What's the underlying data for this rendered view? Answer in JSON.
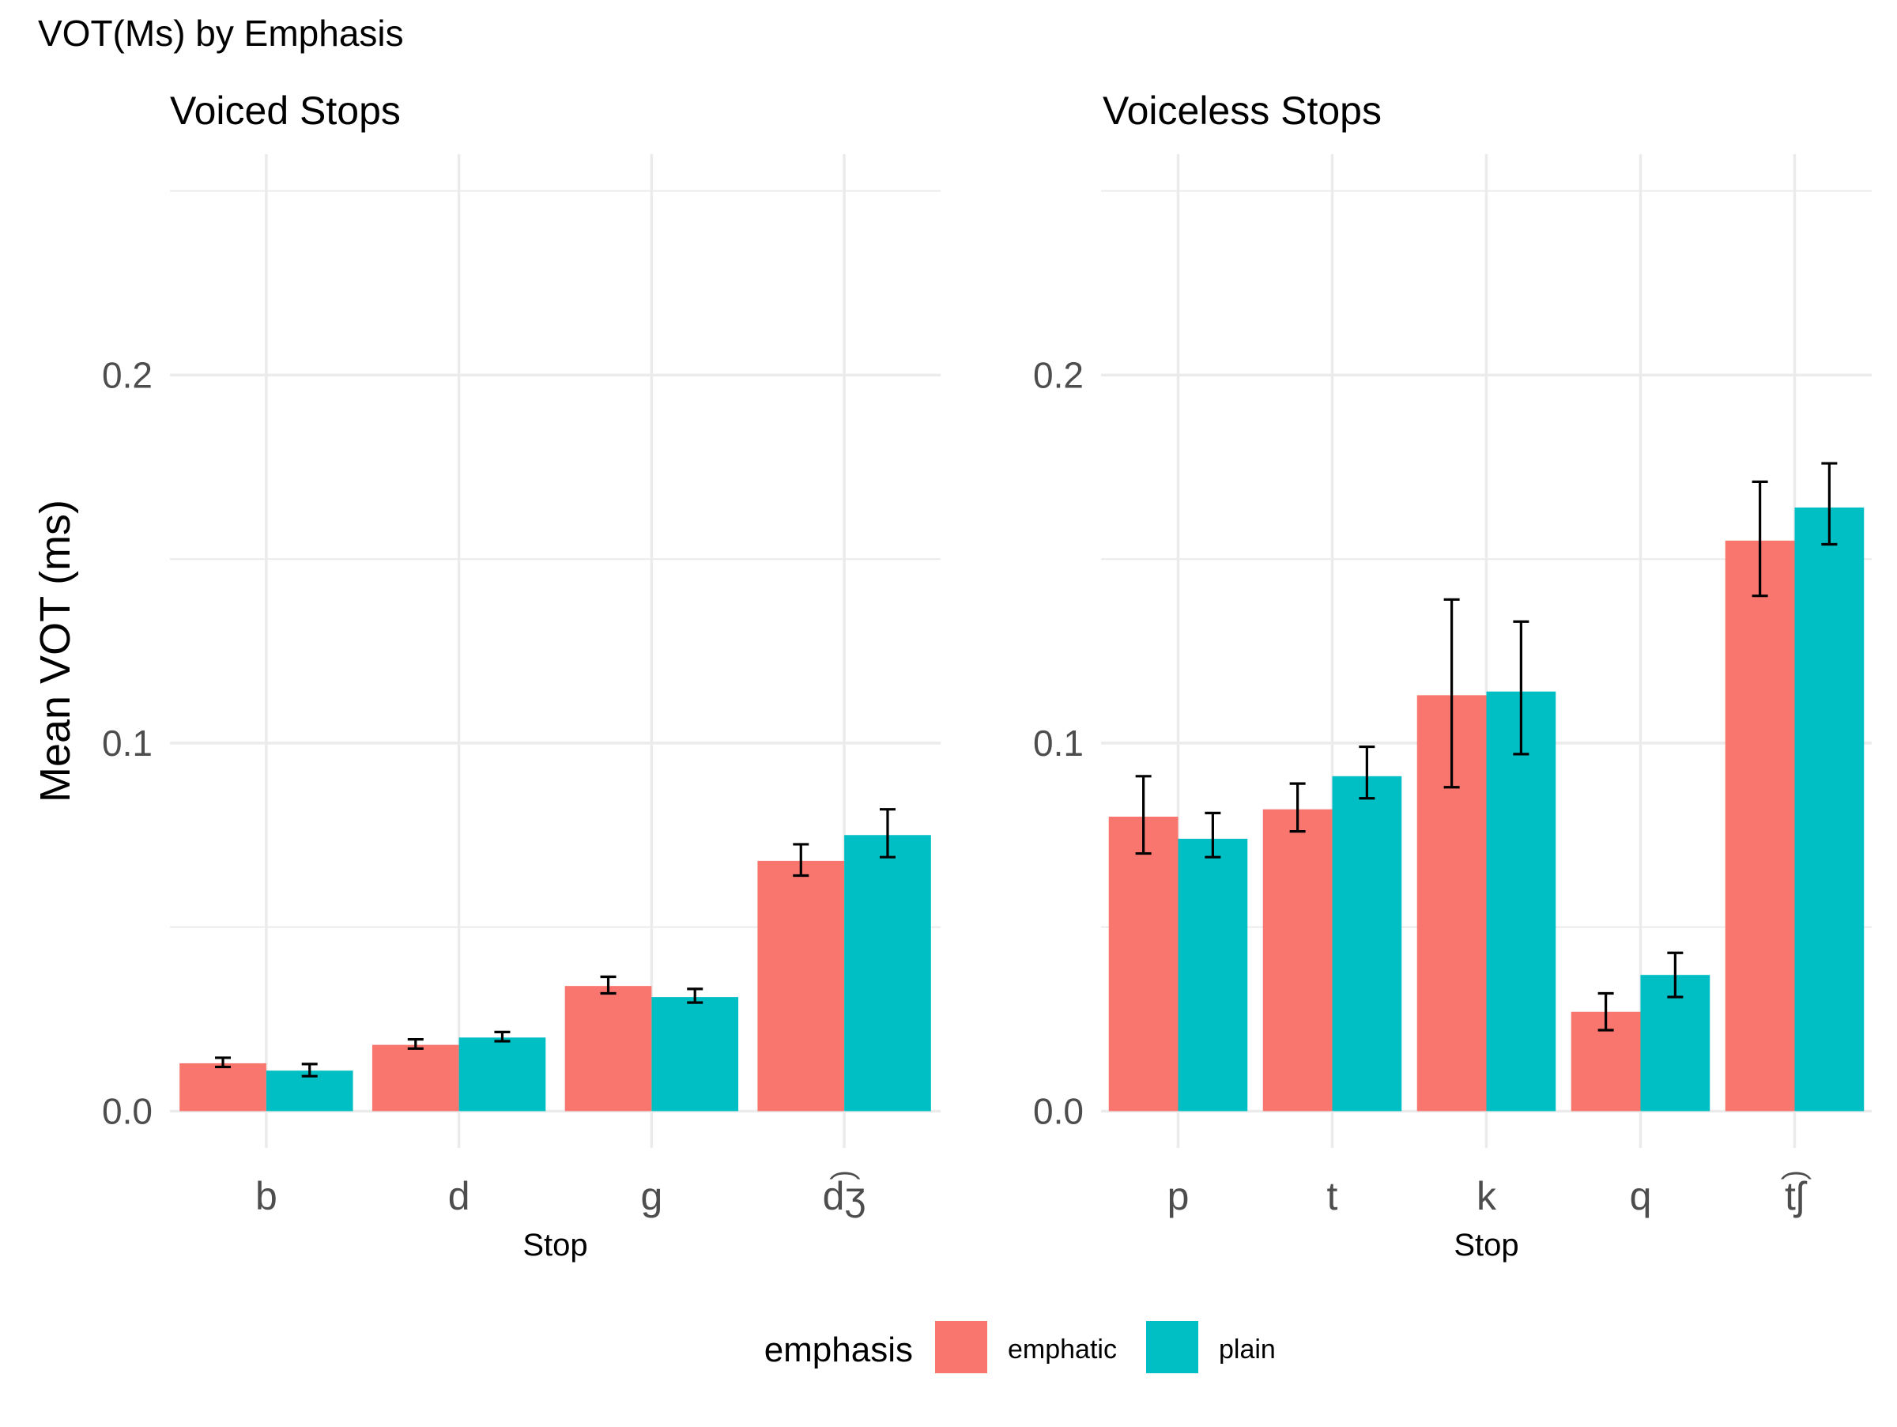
{
  "title": "VOT(Ms) by Emphasis",
  "legend": {
    "title": "emphasis",
    "placement": "bottom",
    "items": [
      {
        "label": "emphatic",
        "color": "#F8766D"
      },
      {
        "label": "plain",
        "color": "#00BFC4"
      }
    ]
  },
  "colors": {
    "emphatic": "#F8766D",
    "plain": "#00BFC4",
    "grid": "#EBEBEB",
    "error_bar": "#000000"
  },
  "chart_data": [
    {
      "type": "bar",
      "title": "Voiced Stops",
      "xlabel": "Stop",
      "ylabel": "Mean VOT (ms)",
      "ylim": [
        -0.01,
        0.26
      ],
      "yticks": [
        0.0,
        0.1,
        0.2
      ],
      "ytick_labels": [
        "0.0",
        "0.1",
        "0.2"
      ],
      "grid": true,
      "categories": [
        "b",
        "d",
        "g",
        "d͡ʒ"
      ],
      "series": [
        {
          "name": "emphatic",
          "values": [
            0.013,
            0.018,
            0.034,
            0.068
          ],
          "error_low": [
            0.012,
            0.017,
            0.032,
            0.064
          ],
          "error_high": [
            0.0145,
            0.0195,
            0.0365,
            0.0725
          ]
        },
        {
          "name": "plain",
          "values": [
            0.011,
            0.02,
            0.031,
            0.075
          ],
          "error_low": [
            0.0095,
            0.019,
            0.0295,
            0.069
          ],
          "error_high": [
            0.0128,
            0.0215,
            0.0332,
            0.082
          ]
        }
      ]
    },
    {
      "type": "bar",
      "title": "Voiceless Stops",
      "xlabel": "Stop",
      "ylabel": "",
      "ylim": [
        -0.01,
        0.26
      ],
      "yticks": [
        0.0,
        0.1,
        0.2
      ],
      "ytick_labels": [
        "0.0",
        "0.1",
        "0.2"
      ],
      "grid": true,
      "categories": [
        "p",
        "t",
        "k",
        "q",
        "t͡ʃ"
      ],
      "series": [
        {
          "name": "emphatic",
          "values": [
            0.08,
            0.082,
            0.113,
            0.027,
            0.155
          ],
          "error_low": [
            0.07,
            0.076,
            0.088,
            0.022,
            0.14
          ],
          "error_high": [
            0.091,
            0.089,
            0.139,
            0.032,
            0.171
          ]
        },
        {
          "name": "plain",
          "values": [
            0.074,
            0.091,
            0.114,
            0.037,
            0.164
          ],
          "error_low": [
            0.069,
            0.085,
            0.097,
            0.031,
            0.154
          ],
          "error_high": [
            0.081,
            0.099,
            0.133,
            0.043,
            0.176
          ]
        }
      ]
    }
  ]
}
